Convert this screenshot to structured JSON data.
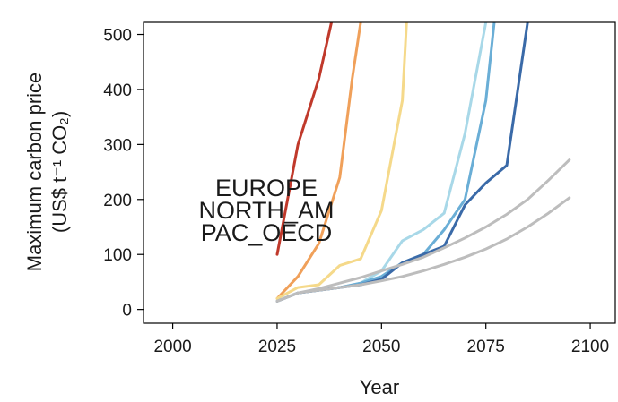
{
  "chart_data": {
    "type": "line",
    "title": "",
    "xlabel": "Year",
    "ylabel": "Maximum carbon price",
    "ylabel_unit": "(US$ t⁻¹ CO₂)",
    "xlim": [
      1993,
      2106
    ],
    "ylim": [
      -25,
      522
    ],
    "xticks": [
      2000,
      2025,
      2050,
      2075,
      2100
    ],
    "yticks": [
      0,
      100,
      200,
      300,
      400,
      500
    ],
    "grid": false,
    "annotations": [
      "EUROPE",
      "NORTH_AM",
      "PAC_OECD"
    ],
    "series": [
      {
        "color": "#c0392b",
        "x": [
          2025,
          2030,
          2035,
          2038,
          2040
        ],
        "y": [
          100,
          300,
          420,
          522,
          600
        ]
      },
      {
        "color": "#f0a05a",
        "x": [
          2025,
          2030,
          2035,
          2040,
          2043,
          2045
        ],
        "y": [
          20,
          60,
          120,
          240,
          420,
          522
        ]
      },
      {
        "color": "#f5d98a",
        "x": [
          2025,
          2030,
          2035,
          2040,
          2045,
          2050,
          2055,
          2056
        ],
        "y": [
          20,
          40,
          45,
          80,
          92,
          180,
          380,
          522
        ]
      },
      {
        "color": "#a8d8e8",
        "x": [
          2025,
          2030,
          2035,
          2040,
          2045,
          2050,
          2055,
          2060,
          2065,
          2070,
          2075
        ],
        "y": [
          15,
          30,
          35,
          40,
          48,
          70,
          125,
          145,
          175,
          320,
          522
        ]
      },
      {
        "color": "#6aaed6",
        "x": [
          2025,
          2030,
          2035,
          2040,
          2045,
          2050,
          2055,
          2060,
          2065,
          2070,
          2075,
          2077
        ],
        "y": [
          15,
          30,
          35,
          40,
          48,
          60,
          85,
          100,
          145,
          200,
          380,
          522
        ]
      },
      {
        "color": "#3a6aa8",
        "x": [
          2025,
          2030,
          2035,
          2040,
          2045,
          2050,
          2055,
          2060,
          2065,
          2070,
          2075,
          2080,
          2085
        ],
        "y": [
          15,
          30,
          35,
          40,
          45,
          55,
          85,
          100,
          115,
          190,
          230,
          262,
          522
        ]
      },
      {
        "color": "#bdbdbd",
        "x": [
          2025,
          2030,
          2035,
          2040,
          2045,
          2050,
          2055,
          2060,
          2065,
          2070,
          2075,
          2080,
          2085,
          2090,
          2095
        ],
        "y": [
          15,
          30,
          38,
          48,
          58,
          70,
          82,
          95,
          112,
          130,
          150,
          173,
          200,
          235,
          272
        ]
      },
      {
        "color": "#bdbdbd",
        "x": [
          2025,
          2030,
          2035,
          2040,
          2045,
          2050,
          2055,
          2060,
          2065,
          2070,
          2075,
          2080,
          2085,
          2090,
          2095
        ],
        "y": [
          15,
          30,
          35,
          40,
          45,
          52,
          60,
          70,
          82,
          95,
          110,
          128,
          150,
          175,
          203
        ]
      }
    ]
  }
}
